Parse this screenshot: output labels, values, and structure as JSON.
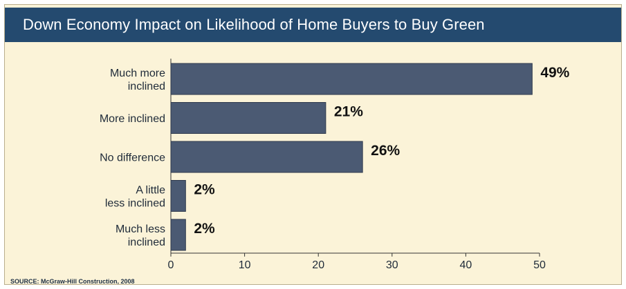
{
  "chart_data": {
    "type": "bar",
    "orientation": "horizontal",
    "title": "Down Economy Impact on Likelihood of Home Buyers to Buy Green",
    "source": "SOURCE: McGraw-Hill Construction, 2008",
    "categories": [
      [
        "Much more",
        "inclined"
      ],
      [
        "More inclined"
      ],
      [
        "No difference"
      ],
      [
        "A little",
        "less inclined"
      ],
      [
        "Much less",
        "inclined"
      ]
    ],
    "values": [
      49,
      21,
      26,
      2,
      2
    ],
    "data_labels": [
      "49%",
      "21%",
      "26%",
      "2%",
      "2%"
    ],
    "xlim": [
      0,
      50
    ],
    "xticks": [
      0,
      10,
      20,
      30,
      40,
      50
    ],
    "xlabel": "",
    "ylabel": "",
    "grid": false,
    "legend": "none",
    "colors": {
      "bar": "#4b5a73",
      "bar_edge": "#2f3a4d",
      "title_bar": "#244a6f",
      "background": "#fbf3d8"
    }
  }
}
